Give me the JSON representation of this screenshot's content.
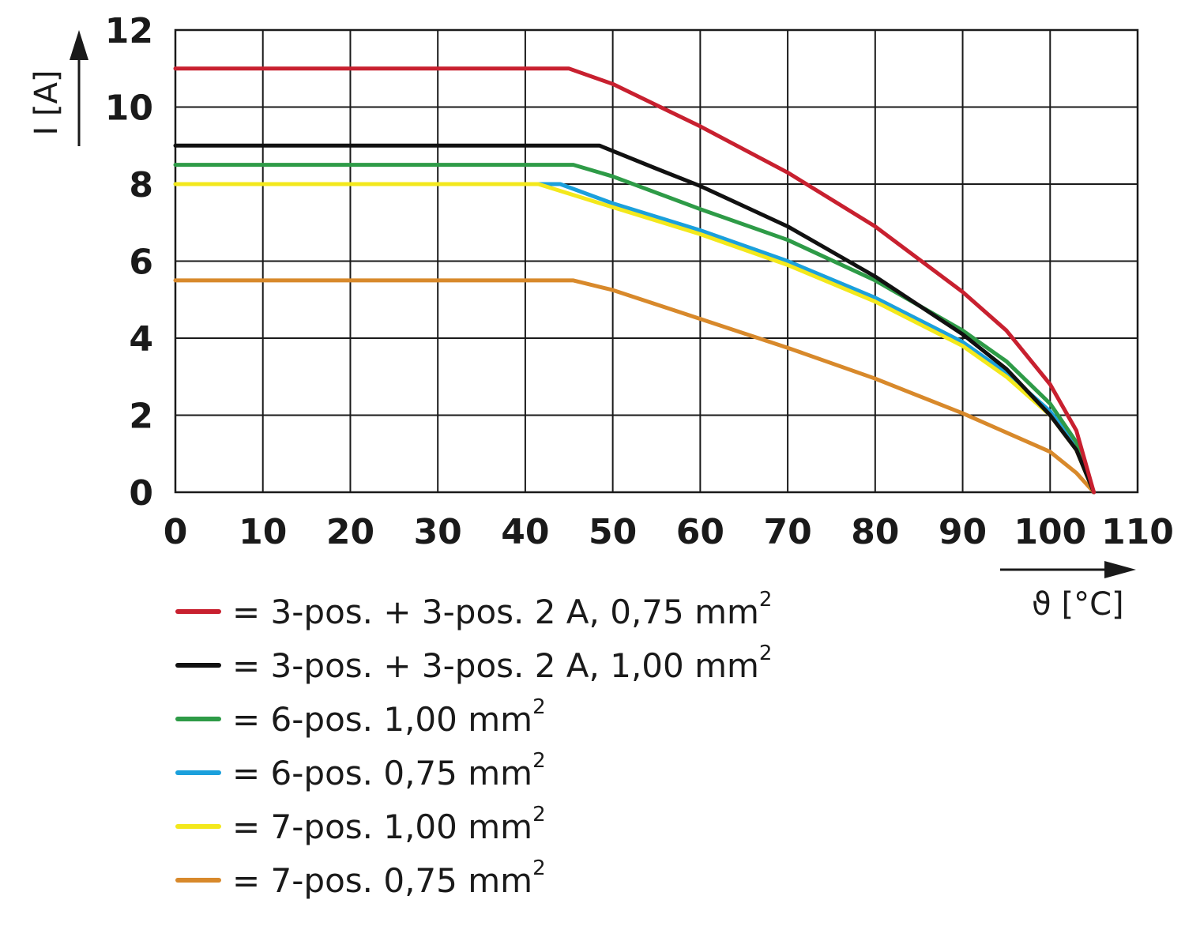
{
  "chart_data": {
    "type": "line",
    "xlabel": "ϑ [°C]",
    "ylabel": "I [A]",
    "xlim": [
      0,
      110
    ],
    "ylim": [
      0,
      12
    ],
    "xticks": [
      "0",
      "10",
      "20",
      "30",
      "40",
      "50",
      "60",
      "70",
      "80",
      "90",
      "100",
      "110"
    ],
    "yticks": [
      "0",
      "2",
      "4",
      "6",
      "8",
      "10",
      "12"
    ],
    "grid": true,
    "legend_position": "bottom",
    "series": [
      {
        "name": "= 3-pos. + 3-pos. 2 A, 0,75 mm",
        "name_sup": "2",
        "color": "#c8202f",
        "points": [
          [
            0,
            11
          ],
          [
            45,
            11
          ],
          [
            50,
            10.6
          ],
          [
            60,
            9.5
          ],
          [
            70,
            8.3
          ],
          [
            80,
            6.9
          ],
          [
            90,
            5.2
          ],
          [
            95,
            4.2
          ],
          [
            100,
            2.8
          ],
          [
            103,
            1.6
          ],
          [
            105,
            0
          ]
        ]
      },
      {
        "name": "= 3-pos. + 3-pos. 2 A, 1,00 mm",
        "name_sup": "2",
        "color": "#111111",
        "points": [
          [
            0,
            9
          ],
          [
            48.5,
            9
          ],
          [
            55,
            8.4
          ],
          [
            60,
            7.95
          ],
          [
            70,
            6.9
          ],
          [
            80,
            5.6
          ],
          [
            90,
            4.1
          ],
          [
            95,
            3.2
          ],
          [
            100,
            2.0
          ],
          [
            103,
            1.1
          ],
          [
            105,
            0
          ]
        ]
      },
      {
        "name": "= 6-pos. 1,00 mm",
        "name_sup": "2",
        "color": "#2e9b47",
        "points": [
          [
            0,
            8.5
          ],
          [
            45.5,
            8.5
          ],
          [
            50,
            8.2
          ],
          [
            60,
            7.35
          ],
          [
            70,
            6.55
          ],
          [
            80,
            5.5
          ],
          [
            90,
            4.2
          ],
          [
            95,
            3.4
          ],
          [
            100,
            2.3
          ],
          [
            103,
            1.3
          ],
          [
            105,
            0
          ]
        ]
      },
      {
        "name": "= 6-pos. 0,75 mm",
        "name_sup": "2",
        "color": "#1ba0dc",
        "points": [
          [
            0,
            8
          ],
          [
            44,
            8
          ],
          [
            50,
            7.5
          ],
          [
            60,
            6.8
          ],
          [
            70,
            6.0
          ],
          [
            80,
            5.05
          ],
          [
            90,
            3.9
          ],
          [
            95,
            3.1
          ],
          [
            100,
            2.1
          ],
          [
            103,
            1.2
          ],
          [
            105,
            0
          ]
        ]
      },
      {
        "name": "= 7-pos. 1,00 mm",
        "name_sup": "2",
        "color": "#f3e81c",
        "points": [
          [
            0,
            8
          ],
          [
            41.5,
            8
          ],
          [
            50,
            7.4
          ],
          [
            60,
            6.7
          ],
          [
            70,
            5.9
          ],
          [
            80,
            4.95
          ],
          [
            90,
            3.8
          ],
          [
            95,
            3.0
          ],
          [
            100,
            2.0
          ],
          [
            103,
            1.1
          ],
          [
            105,
            0
          ]
        ]
      },
      {
        "name": "= 7-pos. 0,75 mm",
        "name_sup": "2",
        "color": "#d8892b",
        "points": [
          [
            0,
            5.5
          ],
          [
            45.5,
            5.5
          ],
          [
            50,
            5.25
          ],
          [
            60,
            4.5
          ],
          [
            70,
            3.75
          ],
          [
            80,
            2.95
          ],
          [
            90,
            2.05
          ],
          [
            100,
            1.05
          ],
          [
            103,
            0.5
          ],
          [
            105,
            0
          ]
        ]
      }
    ]
  }
}
